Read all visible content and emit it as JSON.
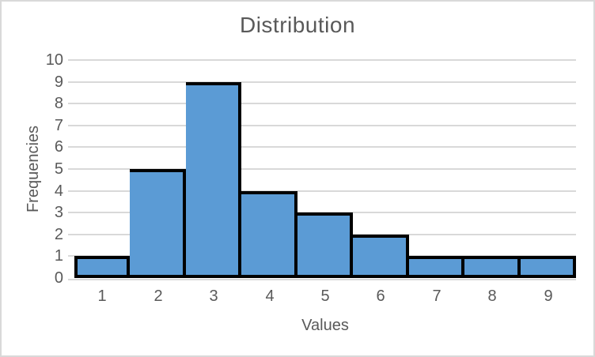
{
  "window": {
    "background": "#FFFFFF",
    "border_color": "#D9D9D9"
  },
  "chart_data": {
    "type": "bar",
    "subtype": "histogram",
    "title": "Distribution",
    "xlabel": "Values",
    "ylabel": "Frequencies",
    "categories": [
      "1",
      "2",
      "3",
      "4",
      "5",
      "6",
      "7",
      "8",
      "9"
    ],
    "values": [
      1,
      5,
      9,
      4,
      3,
      2,
      1,
      1,
      1
    ],
    "ylim": [
      0,
      10
    ],
    "yticks": [
      0,
      1,
      2,
      3,
      4,
      5,
      6,
      7,
      8,
      9,
      10
    ],
    "grid": true,
    "legend_position": "none",
    "gap_width_pct": 0,
    "colors": {
      "bar_fill": "#5B9BD5",
      "bar_border": "#000000",
      "gridline": "#D9D9D9",
      "axis_line": "#D9D9D9",
      "text": "#595959",
      "chart_border": "#D9D9D9",
      "background": "#FFFFFF"
    }
  }
}
